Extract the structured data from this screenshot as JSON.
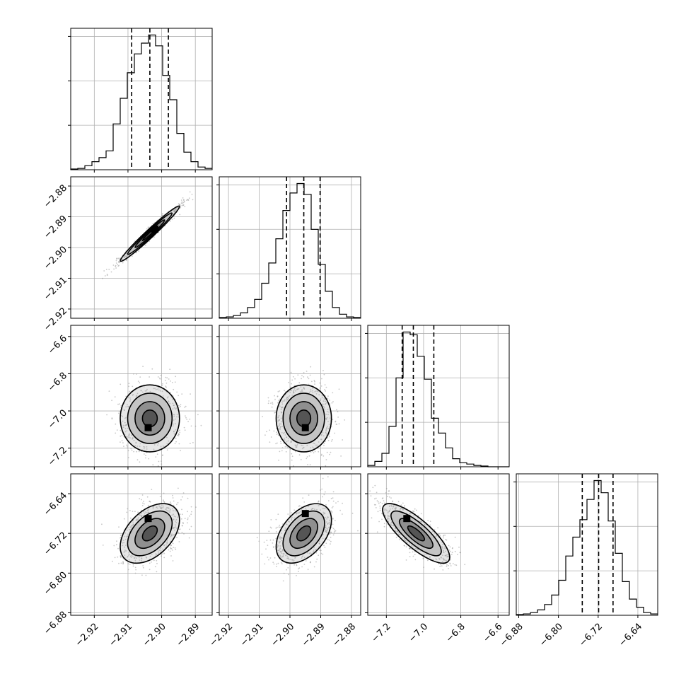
{
  "chart_data": {
    "type": "corner",
    "n_params": 4,
    "grid": true,
    "params": [
      {
        "range": [
          -2.927,
          -2.885
        ],
        "ticks": [
          -2.92,
          -2.91,
          -2.9,
          -2.89
        ],
        "tick_labels": [
          "−2.92",
          "−2.91",
          "−2.90",
          "−2.89"
        ],
        "quantiles": [
          -2.9089,
          -2.9035,
          -2.898
        ]
      },
      {
        "range": [
          -2.923,
          -2.877
        ],
        "ticks": [
          -2.92,
          -2.91,
          -2.9,
          -2.89,
          -2.88
        ],
        "tick_labels": [
          "−2.92",
          "−2.91",
          "−2.90",
          "−2.89",
          "−2.88"
        ],
        "quantiles": [
          -2.9011,
          -2.8955,
          -2.8902
        ]
      },
      {
        "range": [
          -7.3,
          -6.54
        ],
        "ticks": [
          -7.2,
          -7.0,
          -6.8,
          -6.6
        ],
        "tick_labels": [
          "−7.2",
          "−7.0",
          "−6.8",
          "−6.6"
        ],
        "quantiles": [
          -7.115,
          -7.055,
          -6.945
        ]
      },
      {
        "range": [
          -6.885,
          -6.6
        ],
        "ticks": [
          -6.88,
          -6.8,
          -6.72,
          -6.64
        ],
        "tick_labels": [
          "−6.88",
          "−6.80",
          "−6.72",
          "−6.64"
        ],
        "quantiles": [
          -6.752,
          -6.719,
          -6.69
        ]
      }
    ],
    "histograms": [
      [
        0.005,
        0.01,
        0.03,
        0.06,
        0.09,
        0.14,
        0.34,
        0.53,
        0.72,
        0.86,
        0.94,
        1.0,
        0.92,
        0.7,
        0.52,
        0.27,
        0.13,
        0.06,
        0.02,
        0.01
      ],
      [
        0.005,
        0.01,
        0.02,
        0.04,
        0.08,
        0.14,
        0.26,
        0.41,
        0.59,
        0.8,
        0.93,
        1.0,
        0.92,
        0.66,
        0.4,
        0.2,
        0.08,
        0.03,
        0.01,
        0.005
      ],
      [
        0.01,
        0.04,
        0.1,
        0.3,
        0.66,
        1.0,
        0.98,
        0.82,
        0.65,
        0.36,
        0.25,
        0.14,
        0.06,
        0.03,
        0.02,
        0.01,
        0.005,
        0.0,
        0.0,
        0.0
      ],
      [
        0.005,
        0.01,
        0.02,
        0.04,
        0.08,
        0.15,
        0.26,
        0.44,
        0.58,
        0.71,
        0.86,
        1.0,
        0.91,
        0.7,
        0.46,
        0.25,
        0.12,
        0.06,
        0.02,
        0.01
      ]
    ],
    "joint": [
      {
        "row": 1,
        "col": 0,
        "mean": [
          -2.9035,
          -2.8955
        ],
        "sd": [
          0.0044,
          0.0045
        ],
        "rho": 0.98,
        "peak": [
          -2.902,
          -2.894
        ]
      },
      {
        "row": 2,
        "col": 0,
        "mean": [
          -2.9035,
          -7.04
        ],
        "sd": [
          0.0044,
          0.09
        ],
        "rho": 0.0,
        "peak": [
          -2.904,
          -7.09
        ]
      },
      {
        "row": 2,
        "col": 1,
        "mean": [
          -2.8955,
          -7.04
        ],
        "sd": [
          0.0045,
          0.09
        ],
        "rho": 0.0,
        "peak": [
          -2.895,
          -7.09
        ]
      },
      {
        "row": 3,
        "col": 0,
        "mean": [
          -2.9035,
          -6.72
        ],
        "sd": [
          0.0044,
          0.03
        ],
        "rho": 0.45,
        "peak": [
          -2.904,
          -6.69
        ]
      },
      {
        "row": 3,
        "col": 1,
        "mean": [
          -2.8955,
          -6.72
        ],
        "sd": [
          0.0045,
          0.03
        ],
        "rho": 0.45,
        "peak": [
          -2.895,
          -6.68
        ]
      },
      {
        "row": 3,
        "col": 2,
        "mean": [
          -7.04,
          -6.72
        ],
        "sd": [
          0.09,
          0.03
        ],
        "rho": -0.8,
        "peak": [
          -7.09,
          -6.69
        ]
      }
    ]
  }
}
